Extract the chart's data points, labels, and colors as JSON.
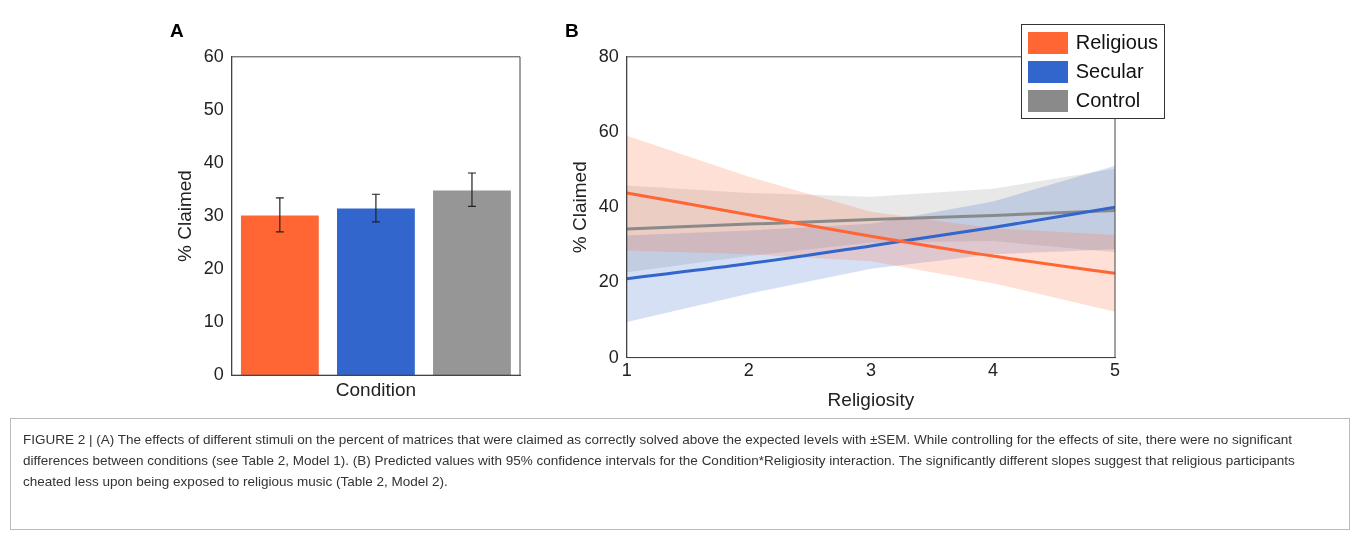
{
  "chart_data": [
    {
      "type": "bar",
      "title": "A",
      "xlabel": "Condition",
      "ylabel": "% Claimed",
      "categories": [
        null,
        null,
        null
      ],
      "values": [
        30.1,
        31.4,
        34.8
      ],
      "colors": [
        "#ff6633",
        "#3366cc",
        "#969696"
      ],
      "errors": [
        [
          27,
          33.4
        ],
        [
          28.9,
          34.1
        ],
        [
          31.8,
          38.1
        ]
      ],
      "ylim": [
        0,
        60
      ],
      "yticks": [
        0,
        10,
        20,
        30,
        40,
        50,
        60
      ],
      "tick_labels": "y"
    },
    {
      "type": "line",
      "title": "B",
      "xlabel": "Religiosity",
      "ylabel": "% Claimed",
      "x": [
        1,
        2,
        3,
        4,
        5
      ],
      "legend": "top right",
      "xlim": [
        1,
        5
      ],
      "xticks": [
        1,
        2,
        3,
        4,
        5
      ],
      "ylim": [
        0,
        80
      ],
      "yticks": [
        0,
        20,
        40,
        60,
        80
      ],
      "series": [
        {
          "name": "Religious",
          "color": "#ff6633",
          "values": [
            43.8,
            38,
            32.3,
            27,
            22.4
          ],
          "lower": [
            28.5,
            27.5,
            25.6,
            19.8,
            12.2
          ],
          "upper": [
            59,
            48.1,
            38.8,
            34.4,
            32.6
          ]
        },
        {
          "name": "Secular",
          "color": "#3366cc",
          "values": [
            21,
            25,
            29.7,
            34.6,
            40
          ],
          "lower": [
            9.5,
            17,
            23.6,
            27.5,
            28.8
          ],
          "upper": [
            32.5,
            33.8,
            35.6,
            41.5,
            51
          ]
        },
        {
          "name": "Control",
          "color": "#8a8a8a",
          "values": [
            34.2,
            35.5,
            36.7,
            37.8,
            39.1
          ],
          "lower": [
            22.7,
            27,
            30.6,
            31,
            28
          ],
          "upper": [
            45.8,
            43.8,
            42.8,
            44.9,
            50.2
          ]
        }
      ],
      "annotations": [
        "FIGURE 2 | (A) The effects of different stimuli on the percent of matrices that were claimed as correctly solved above the expected levels with ±SEM. While controlling for the effects of site, there were no significant differences between conditions (see Table 2, Model 1). (B) Predicted values with 95% confidence intervals for the Condition*Religiosity interaction. The significantly different slopes suggest that religious participants cheated less upon being exposed to religious music (Table 2, Model 2)."
      ]
    }
  ]
}
